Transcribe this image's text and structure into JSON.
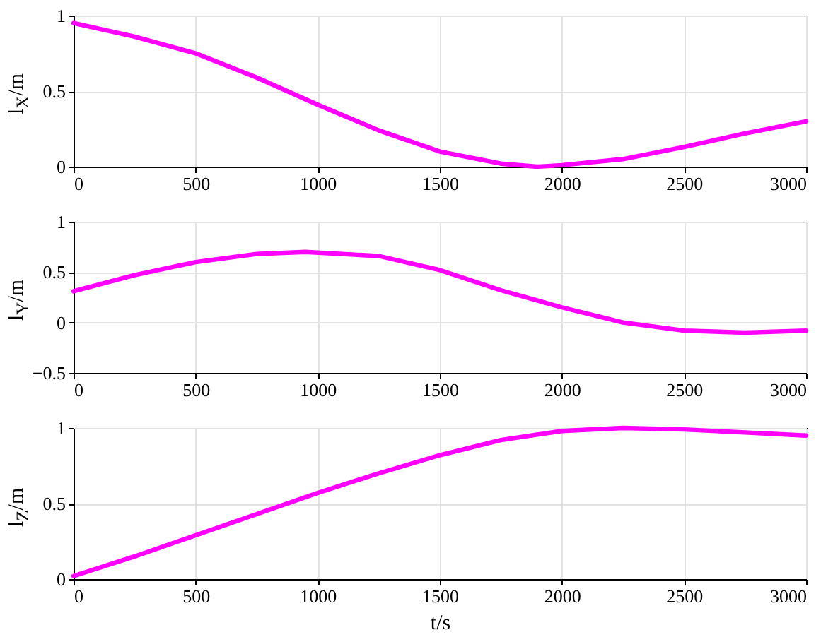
{
  "chart_data": [
    {
      "type": "line",
      "ylabel": "l$_{X}$/m",
      "x": [
        0,
        250,
        500,
        750,
        1000,
        1250,
        1500,
        1750,
        1900,
        2000,
        2250,
        2500,
        2750,
        3000
      ],
      "series": [
        {
          "color": "#ff00ff",
          "values": [
            0.95,
            0.86,
            0.75,
            0.59,
            0.41,
            0.24,
            0.1,
            0.02,
            0.0,
            0.01,
            0.05,
            0.13,
            0.22,
            0.3
          ]
        }
      ],
      "xlim": [
        0,
        3000
      ],
      "xticks": [
        0,
        500,
        1000,
        1500,
        2000,
        2500,
        3000
      ],
      "ylim": [
        0,
        1
      ],
      "yticks": [
        0,
        0.5,
        1
      ],
      "grid": true,
      "line_style": "solid"
    },
    {
      "type": "line",
      "ylabel": "l$_{Y}$/m",
      "x": [
        0,
        250,
        500,
        750,
        950,
        1250,
        1500,
        1750,
        2000,
        2250,
        2500,
        2750,
        3000
      ],
      "series": [
        {
          "color": "#ff00ff",
          "values": [
            0.31,
            0.47,
            0.6,
            0.68,
            0.7,
            0.66,
            0.52,
            0.32,
            0.15,
            0.0,
            -0.08,
            -0.1,
            -0.08
          ]
        }
      ],
      "xlim": [
        0,
        3000
      ],
      "xticks": [
        0,
        500,
        1000,
        1500,
        2000,
        2500,
        3000
      ],
      "ylim": [
        -0.5,
        1
      ],
      "yticks": [
        -0.5,
        0,
        0.5,
        1
      ],
      "grid": true,
      "line_style": "solid"
    },
    {
      "type": "line",
      "xlabel": "t/s",
      "ylabel": "l$_{Z}$/m",
      "x": [
        0,
        250,
        500,
        750,
        1000,
        1250,
        1500,
        1750,
        2000,
        2250,
        2500,
        2750,
        3000
      ],
      "series": [
        {
          "color": "#ff00ff",
          "values": [
            0.02,
            0.15,
            0.29,
            0.43,
            0.57,
            0.7,
            0.82,
            0.92,
            0.98,
            1.0,
            0.99,
            0.97,
            0.95
          ]
        }
      ],
      "xlim": [
        0,
        3000
      ],
      "xticks": [
        0,
        500,
        1000,
        1500,
        2000,
        2500,
        3000
      ],
      "ylim": [
        0,
        1
      ],
      "yticks": [
        0,
        0.5,
        1
      ],
      "grid": true,
      "line_style": "solid"
    }
  ]
}
